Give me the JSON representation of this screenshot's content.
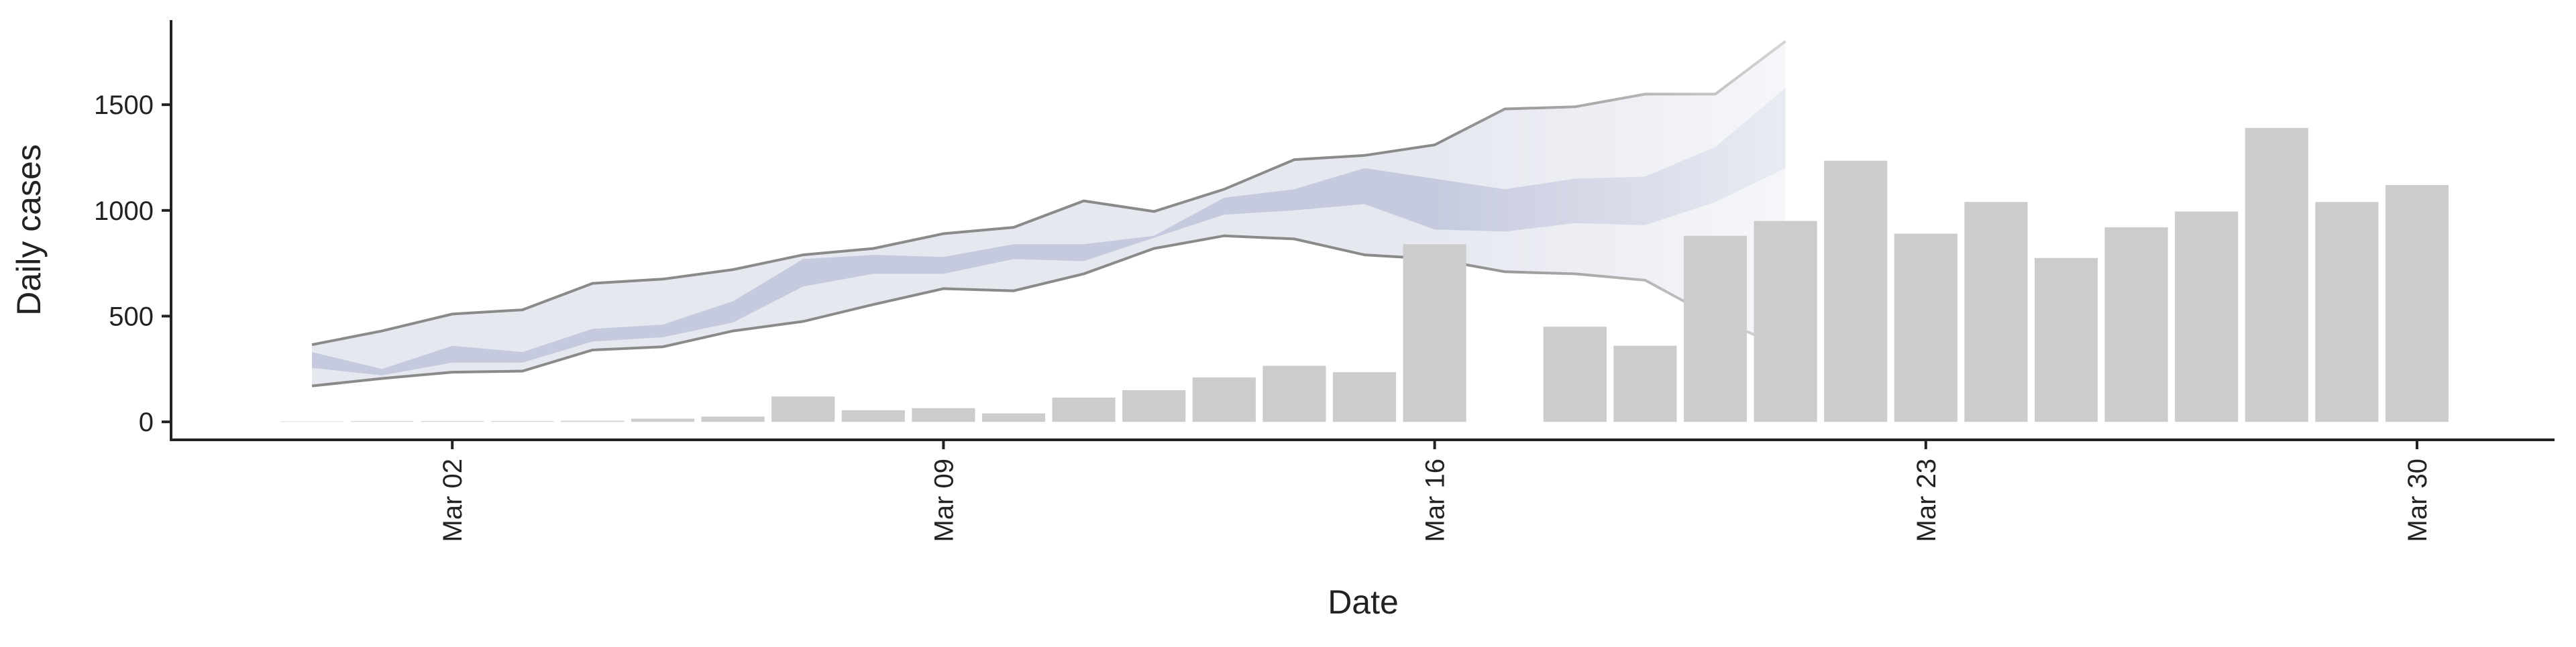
{
  "chart_data": {
    "type": "bar",
    "y_label": "Daily cases",
    "x_label": "Date",
    "categories": [
      null,
      null,
      "Mar 02",
      null,
      null,
      null,
      null,
      null,
      null,
      "Mar 09",
      null,
      null,
      null,
      null,
      null,
      null,
      "Mar 16",
      null,
      null,
      null,
      null,
      null,
      null,
      "Mar 23",
      null,
      null,
      null,
      null,
      null,
      null,
      "Mar 30"
    ],
    "values": [
      2,
      3,
      3,
      3,
      5,
      15,
      25,
      120,
      55,
      65,
      40,
      115,
      150,
      210,
      265,
      235,
      840,
      null,
      450,
      360,
      880,
      950,
      1235,
      890,
      1040,
      775,
      920,
      995,
      1390,
      1040,
      1120
    ],
    "color": "#cccccc",
    "ribbons": [
      {
        "color": "#e6e8f0",
        "line_color": "#8a8a8a",
        "upper": [
          365,
          430,
          510,
          530,
          655,
          675,
          720,
          790,
          820,
          890,
          920,
          1045,
          995,
          1100,
          1240,
          1260,
          1310,
          1480,
          1490,
          1550,
          1550,
          1800
        ],
        "lower": [
          170,
          205,
          235,
          240,
          340,
          355,
          430,
          475,
          555,
          630,
          620,
          700,
          820,
          880,
          865,
          790,
          770,
          710,
          700,
          670,
          490,
          350
        ]
      },
      {
        "color": "#c5cade",
        "upper": [
          330,
          250,
          360,
          330,
          440,
          460,
          570,
          770,
          790,
          780,
          840,
          840,
          880,
          1060,
          1100,
          1200,
          1150,
          1100,
          1150,
          1160,
          1300,
          1580
        ],
        "lower": [
          255,
          220,
          280,
          280,
          380,
          400,
          470,
          640,
          700,
          700,
          770,
          760,
          870,
          980,
          1000,
          1030,
          910,
          900,
          940,
          930,
          1040,
          1200
        ]
      }
    ],
    "ylim": [
      -85,
      1900
    ],
    "yticks": [
      0,
      500,
      1000,
      1500
    ]
  }
}
